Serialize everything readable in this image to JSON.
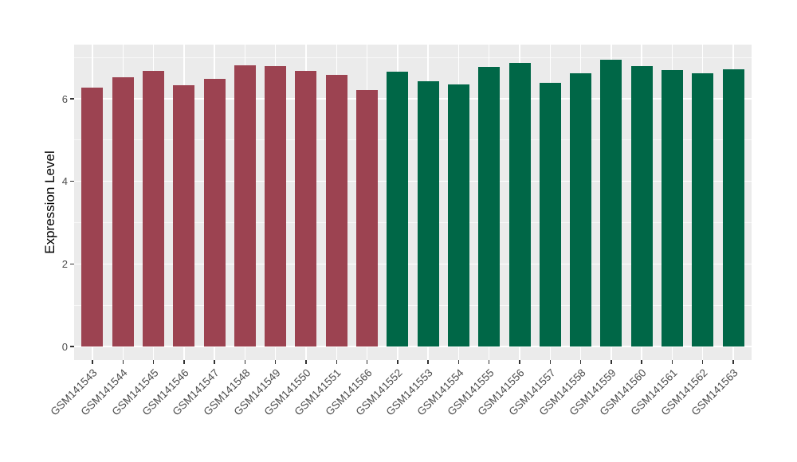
{
  "chart_data": {
    "type": "bar",
    "title": "",
    "xlabel": "",
    "ylabel": "Expression Level",
    "categories": [
      "GSM141543",
      "GSM141544",
      "GSM141545",
      "GSM141546",
      "GSM141547",
      "GSM141548",
      "GSM141549",
      "GSM141550",
      "GSM141551",
      "GSM141566",
      "GSM141552",
      "GSM141553",
      "GSM141554",
      "GSM141555",
      "GSM141556",
      "GSM141557",
      "GSM141558",
      "GSM141559",
      "GSM141560",
      "GSM141561",
      "GSM141562",
      "GSM141563"
    ],
    "values": [
      6.28,
      6.52,
      6.67,
      6.32,
      6.48,
      6.81,
      6.8,
      6.67,
      6.57,
      6.21,
      6.66,
      6.42,
      6.35,
      6.77,
      6.87,
      6.39,
      6.61,
      6.95,
      6.79,
      6.69,
      6.62,
      6.71
    ],
    "bar_colors": [
      "#9C4351",
      "#9C4351",
      "#9C4351",
      "#9C4351",
      "#9C4351",
      "#9C4351",
      "#9C4351",
      "#9C4351",
      "#9C4351",
      "#9C4351",
      "#006747",
      "#006747",
      "#006747",
      "#006747",
      "#006747",
      "#006747",
      "#006747",
      "#006747",
      "#006747",
      "#006747",
      "#006747",
      "#006747"
    ],
    "yticks": [
      0,
      2,
      4,
      6
    ],
    "ylim": [
      0,
      7.31
    ],
    "legend_position": "none",
    "grid": true,
    "colors": {
      "group_red": "#9C4351",
      "group_green": "#006747",
      "panel_bg": "#EBEBEB",
      "grid": "#FFFFFF",
      "tick_mark": "#333333",
      "tick_label": "#4D4D4D",
      "figure_bg": "#FFFFFF"
    }
  }
}
